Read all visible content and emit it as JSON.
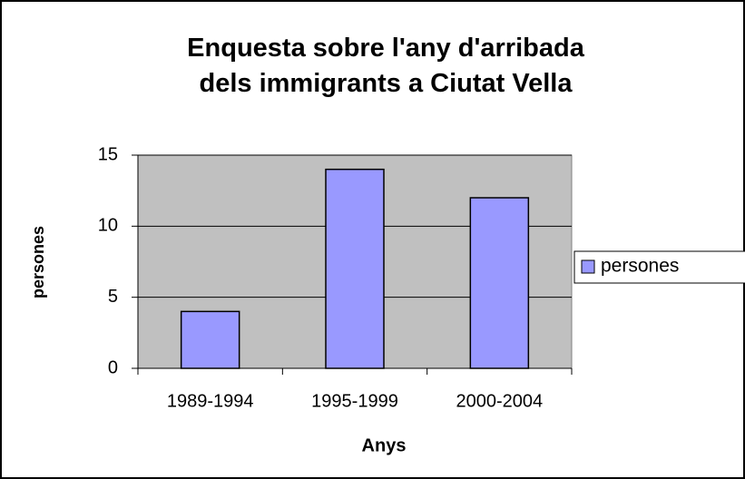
{
  "chart_data": {
    "type": "bar",
    "title": "Enquesta sobre l'any d'arribada dels immigrants a Ciutat Vella",
    "xlabel": "Anys",
    "ylabel": "persones",
    "categories": [
      "1989-1994",
      "1995-1999",
      "2000-2004"
    ],
    "series": [
      {
        "name": "persones",
        "color": "#9999ff",
        "values": [
          4,
          14,
          12
        ]
      }
    ],
    "ylim": [
      0,
      15
    ],
    "yticks": [
      0,
      5,
      10,
      15
    ],
    "grid": true,
    "legend": "right"
  }
}
